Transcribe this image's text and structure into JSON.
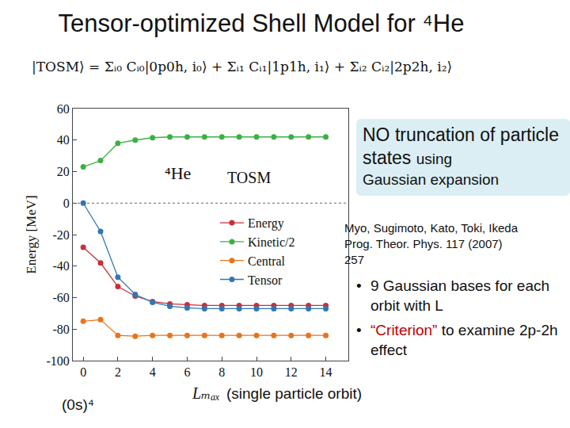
{
  "title": "Tensor-optimized Shell Model for ⁴He",
  "formula": "|TOSM⟩ = Σᵢ₀ Cᵢ₀|0p0h, i₀⟩ + Σᵢ₁ Cᵢ₁|1p1h, i₁⟩ + Σᵢ₂ Cᵢ₂|2p2h, i₂⟩",
  "chart_data": {
    "type": "line",
    "x": [
      0,
      1,
      2,
      3,
      4,
      5,
      6,
      7,
      8,
      9,
      10,
      11,
      12,
      13,
      14
    ],
    "series": [
      {
        "name": "Energy",
        "color": "#c8303a",
        "values": [
          -28,
          -38,
          -53,
          -59,
          -62.5,
          -64,
          -64.5,
          -65,
          -65,
          -65,
          -65,
          -65,
          -65,
          -65,
          -65
        ]
      },
      {
        "name": "Kinetic/2",
        "color": "#3cb043",
        "values": [
          23,
          27,
          38,
          40,
          41.5,
          42,
          42,
          42,
          42,
          42,
          42,
          42,
          42,
          42,
          42
        ]
      },
      {
        "name": "Central",
        "color": "#e8741c",
        "values": [
          -75,
          -74,
          -84,
          -84.5,
          -84,
          -84,
          -84,
          -84,
          -84,
          -84,
          -84,
          -84,
          -84,
          -84,
          -84
        ]
      },
      {
        "name": "Tensor",
        "color": "#2f78b4",
        "values": [
          0,
          -18,
          -47,
          -58,
          -63,
          -65.5,
          -66.5,
          -67,
          -67,
          -67,
          -67,
          -67,
          -67,
          -67,
          -67
        ]
      }
    ],
    "xlim": [
      -0.6,
      15.3
    ],
    "xticks": [
      0,
      2,
      4,
      6,
      8,
      10,
      12,
      14
    ],
    "ylim": [
      -100,
      60
    ],
    "yticks": [
      -100,
      -80,
      -60,
      -40,
      -20,
      0,
      20,
      40,
      60
    ],
    "x_label": "Lₘₐₓ",
    "y_label": "Energy [MeV]",
    "annotations": [
      "⁴He",
      "TOSM"
    ],
    "hline": 0,
    "legend": "right",
    "marker": "circle",
    "line_style": "solid",
    "grid": false
  },
  "notes": {
    "box_main": "NO truncation of particle states",
    "box_main_tail": "using",
    "box_sub": "Gaussian expansion",
    "reference": [
      "Myo, Sugimoto, Kato, Toki, Ikeda",
      "Prog. Theor. Phys. 117 (2007)",
      "257"
    ],
    "bullets": [
      [
        {
          "text": "9 Gaussian bases for each orbit with L"
        }
      ],
      [
        {
          "text": "“Criterion”",
          "color": "#c00000"
        },
        {
          "text": " to examine 2p-2h effect"
        }
      ]
    ],
    "x_note": "(single particle orbit)",
    "x_start": "(0s)⁴"
  }
}
